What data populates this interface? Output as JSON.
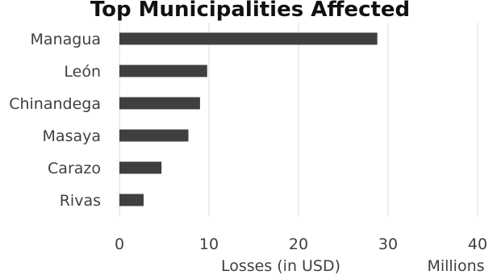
{
  "chart_data": {
    "type": "bar",
    "orientation": "horizontal",
    "title": "Top Municipalities Affected",
    "categories": [
      "Managua",
      "León",
      "Chinandega",
      "Masaya",
      "Carazo",
      "Rivas"
    ],
    "values": [
      28.8,
      9.8,
      9.0,
      7.7,
      4.7,
      2.7
    ],
    "xlabel": "Losses (in USD)",
    "xunit": "Millions",
    "xlim": [
      0,
      40
    ],
    "xticks": [
      0,
      10,
      20,
      30,
      40
    ],
    "grid": true,
    "bar_color": "#3f3f3f"
  }
}
